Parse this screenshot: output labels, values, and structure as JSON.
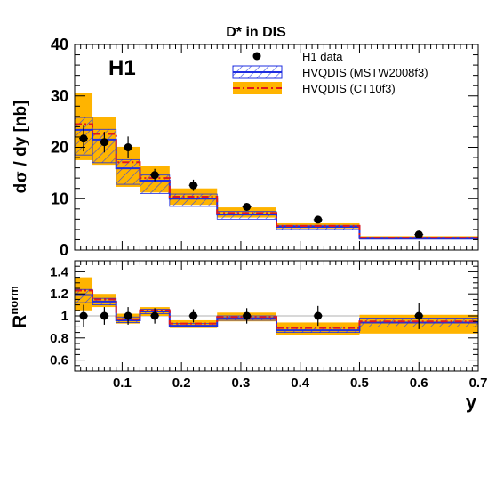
{
  "figure": {
    "title": "D* in DIS",
    "experiment": "H1",
    "x_axis_label": "y",
    "top_ylabel_parts": [
      "d",
      "σ",
      " / dy [nb]"
    ],
    "bottom_ylabel_main": "R",
    "bottom_ylabel_sup": "norm",
    "legend": [
      {
        "label": "H1 data",
        "kind": "marker"
      },
      {
        "label": "HVQDIS (MSTW2008f3)",
        "kind": "hatched-band",
        "color": "#1f2fe0"
      },
      {
        "label": "HVQDIS (CT10f3)",
        "kind": "dashdot-band",
        "color": "#e0181e",
        "fill": "#ffb400"
      }
    ]
  },
  "colors": {
    "data": "#000000",
    "mstw_line": "#1f2fe0",
    "mstw_hatch": "#3547e6",
    "ct10_line": "#e0181e",
    "ct10_band": "#ffb400"
  },
  "chart_data": [
    {
      "type": "line",
      "panel": "cross-section",
      "title": "D* in DIS",
      "xlabel": "",
      "ylabel": "dσ / dy [nb]",
      "xlim": [
        0.02,
        0.7
      ],
      "ylim": [
        0,
        40
      ],
      "x_ticks": [
        0.1,
        0.2,
        0.3,
        0.4,
        0.5,
        0.6,
        0.7
      ],
      "y_ticks": [
        0,
        10,
        20,
        30,
        40
      ],
      "bin_edges": [
        0.02,
        0.05,
        0.09,
        0.13,
        0.18,
        0.26,
        0.36,
        0.5,
        0.7
      ],
      "series": [
        {
          "name": "H1 data",
          "style": "points",
          "x": [
            0.035,
            0.07,
            0.11,
            0.155,
            0.22,
            0.31,
            0.43,
            0.6
          ],
          "values": [
            21.7,
            21.0,
            20.0,
            14.6,
            12.6,
            8.4,
            5.9,
            3.0
          ],
          "err": [
            2.5,
            2.0,
            2.1,
            1.2,
            1.1,
            0.7,
            0.5,
            0.3
          ]
        },
        {
          "name": "HVQDIS (MSTW2008f3)",
          "style": "hist",
          "values": [
            23.4,
            21.5,
            15.9,
            13.5,
            10.0,
            6.9,
            4.5,
            2.3
          ],
          "lo": [
            18.5,
            17.0,
            12.8,
            11.0,
            8.5,
            6.0,
            4.0,
            2.1
          ],
          "hi": [
            25.8,
            23.5,
            17.6,
            14.6,
            10.9,
            7.5,
            4.8,
            2.5
          ]
        },
        {
          "name": "HVQDIS (CT10f3)",
          "style": "hist",
          "values": [
            24.5,
            22.6,
            17.1,
            14.0,
            10.4,
            7.2,
            4.7,
            2.4
          ],
          "lo": [
            17.5,
            16.6,
            12.3,
            11.2,
            8.8,
            6.3,
            4.2,
            2.2
          ],
          "hi": [
            30.5,
            25.8,
            20.1,
            16.4,
            12.0,
            8.3,
            5.2,
            2.7
          ]
        }
      ]
    },
    {
      "type": "line",
      "panel": "ratio",
      "xlabel": "y",
      "ylabel": "R norm",
      "xlim": [
        0.02,
        0.7
      ],
      "ylim": [
        0.5,
        1.5
      ],
      "x_ticks": [
        0.1,
        0.2,
        0.3,
        0.4,
        0.5,
        0.6,
        0.7
      ],
      "y_ticks": [
        0.6,
        0.8,
        1,
        1.2,
        1.4
      ],
      "y_tick_labels": [
        "0.6",
        "0.8",
        "1",
        "1.2",
        "1.4"
      ],
      "reference_line": 1,
      "bin_edges": [
        0.02,
        0.05,
        0.09,
        0.13,
        0.18,
        0.26,
        0.36,
        0.5,
        0.7
      ],
      "series": [
        {
          "name": "H1 data",
          "style": "points",
          "x": [
            0.035,
            0.07,
            0.11,
            0.155,
            0.22,
            0.31,
            0.43,
            0.6
          ],
          "values": [
            1.0,
            1.0,
            1.0,
            1.0,
            1.0,
            1.0,
            1.0,
            1.0
          ],
          "err": [
            0.1,
            0.08,
            0.08,
            0.07,
            0.06,
            0.07,
            0.09,
            0.12
          ]
        },
        {
          "name": "HVQDIS (MSTW2008f3)",
          "style": "hist",
          "values": [
            1.19,
            1.13,
            0.96,
            1.04,
            0.91,
            0.98,
            0.87,
            0.94
          ],
          "lo": [
            1.12,
            1.1,
            0.94,
            1.02,
            0.9,
            0.96,
            0.85,
            0.9
          ],
          "hi": [
            1.24,
            1.16,
            0.99,
            1.06,
            0.93,
            1.0,
            0.9,
            0.98
          ]
        },
        {
          "name": "HVQDIS (CT10f3)",
          "style": "hist",
          "values": [
            1.23,
            1.15,
            0.97,
            1.05,
            0.93,
            0.99,
            0.89,
            0.95
          ],
          "lo": [
            1.05,
            1.08,
            0.93,
            1.0,
            0.89,
            0.95,
            0.83,
            0.84
          ],
          "hi": [
            1.35,
            1.2,
            1.02,
            1.08,
            0.96,
            1.03,
            0.94,
            1.01
          ]
        }
      ]
    }
  ]
}
